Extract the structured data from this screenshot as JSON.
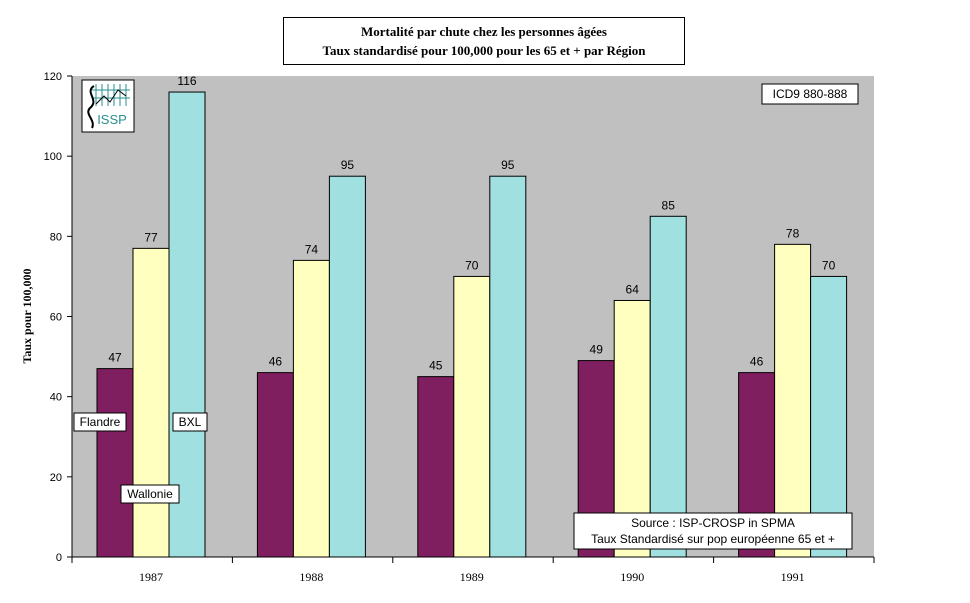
{
  "chart_data": {
    "type": "bar",
    "title": "Mortalité par chute chez les personnes âgées",
    "subtitle": "Taux standardisé pour 100,000 pour les 65 et + par Région",
    "xlabel": "",
    "ylabel": "Taux pour 100,000",
    "ylim": [
      0,
      120
    ],
    "yticks": [
      "0",
      "20",
      "40",
      "60",
      "80",
      "100",
      "120"
    ],
    "categories": [
      "1987",
      "1988",
      "1989",
      "1990",
      "1991"
    ],
    "series": [
      {
        "name": "Flandre",
        "color": "#7f1f5f",
        "values": [
          47,
          46,
          45,
          49,
          46
        ]
      },
      {
        "name": "Wallonie",
        "color": "#ffffc0",
        "values": [
          77,
          74,
          70,
          64,
          78
        ]
      },
      {
        "name": "BXL",
        "color": "#a0e0e0",
        "values": [
          116,
          95,
          95,
          85,
          70
        ]
      }
    ],
    "plot_background": "#c0c0c0",
    "grid": false,
    "annotations": {
      "code": "ICD9  880-888",
      "source_line1": "Source : ISP-CROSP in SPMA",
      "source_line2": "Taux Standardisé sur pop européenne 65 et +"
    },
    "logo_text": "ISSP"
  }
}
